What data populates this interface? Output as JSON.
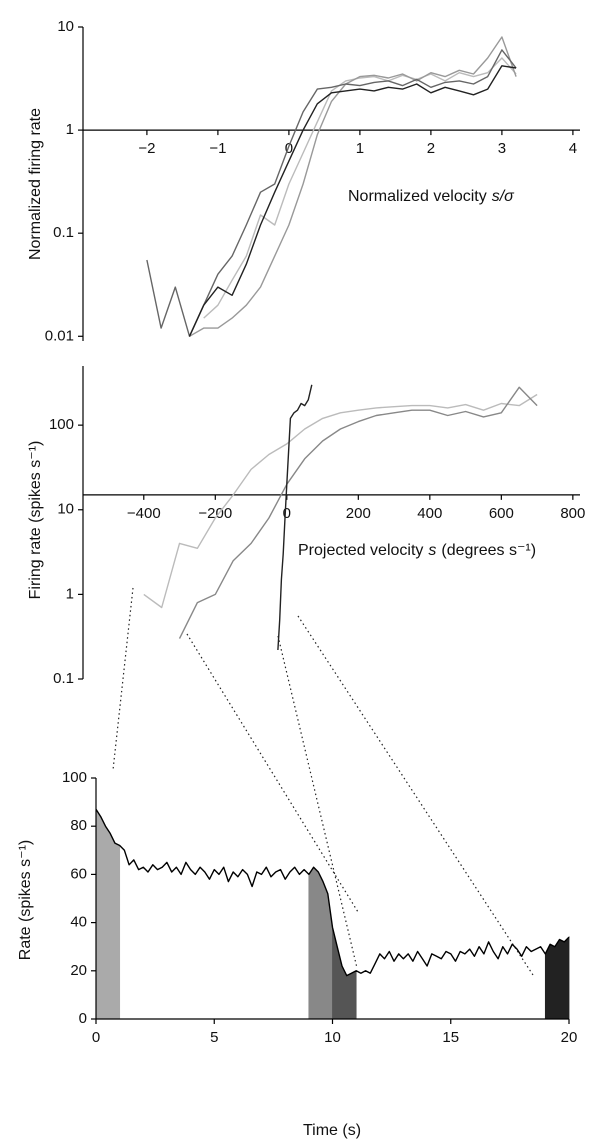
{
  "chart_data": [
    {
      "type": "line",
      "yscale": "log",
      "y_label": "Normalized firing rate",
      "x_label": [
        "Normalized velocity",
        "s/σ"
      ],
      "xlim": [
        -2.9,
        4.1
      ],
      "ylim": [
        0.009,
        10
      ],
      "x_axis_at": 1,
      "xticks": [
        {
          "value": -2,
          "label": "−2"
        },
        {
          "value": -1,
          "label": "−1"
        },
        0,
        1,
        2,
        3,
        4
      ],
      "yticks": [
        0.01,
        0.1,
        1,
        10
      ],
      "x": [
        -2.0,
        -1.8,
        -1.6,
        -1.4,
        -1.2,
        -1.0,
        -0.8,
        -0.6,
        -0.4,
        -0.2,
        0,
        0.2,
        0.4,
        0.6,
        0.8,
        1.0,
        1.2,
        1.4,
        1.6,
        1.8,
        2.0,
        2.2,
        2.4,
        2.6,
        2.8,
        3.0,
        3.2
      ],
      "series": [
        {
          "color": "#bbbbbb",
          "values": [
            null,
            null,
            null,
            null,
            0.015,
            0.02,
            0.035,
            0.06,
            0.15,
            0.12,
            0.3,
            0.6,
            1.2,
            2.4,
            3.0,
            3.2,
            3.3,
            3.0,
            3.4,
            3.1,
            3.5,
            3.0,
            3.6,
            3.3,
            3.6,
            5.0,
            3.5
          ]
        },
        {
          "color": "#999999",
          "values": [
            null,
            null,
            null,
            0.01,
            0.012,
            0.012,
            0.015,
            0.02,
            0.03,
            0.06,
            0.12,
            0.3,
            0.9,
            1.9,
            2.8,
            3.3,
            3.4,
            3.2,
            3.5,
            3.0,
            3.6,
            3.3,
            3.8,
            3.5,
            5.0,
            8.0,
            3.3
          ]
        },
        {
          "color": "#666666",
          "values": [
            0.055,
            0.012,
            0.03,
            0.01,
            0.02,
            0.04,
            0.06,
            0.12,
            0.25,
            0.3,
            0.7,
            1.5,
            2.5,
            2.6,
            2.8,
            2.7,
            2.9,
            3.0,
            2.7,
            3.1,
            2.6,
            2.9,
            3.0,
            2.8,
            3.3,
            6.0,
            4.0
          ]
        },
        {
          "color": "#222222",
          "values": [
            null,
            null,
            null,
            0.01,
            0.02,
            0.03,
            0.025,
            0.05,
            0.12,
            0.25,
            0.5,
            1.0,
            1.8,
            2.3,
            2.4,
            2.5,
            2.4,
            2.6,
            2.5,
            2.8,
            2.3,
            2.6,
            2.4,
            2.2,
            2.5,
            4.2,
            4.0
          ]
        }
      ]
    },
    {
      "type": "line",
      "yscale": "log",
      "y_label": "Firing rate (spikes s⁻¹)",
      "x_label": [
        "Projected velocity",
        "s",
        "(degrees s⁻¹)"
      ],
      "xlim": [
        -570,
        820
      ],
      "ylim": [
        0.1,
        500
      ],
      "x_axis_at": 15,
      "xticks": [
        {
          "value": -400,
          "label": "−400"
        },
        {
          "value": -200,
          "label": "−200"
        },
        0,
        200,
        400,
        600,
        800
      ],
      "yticks": [
        0.1,
        1,
        10,
        100
      ],
      "series": [
        {
          "color": "#bbbbbb",
          "x": [
            -400,
            -350,
            -300,
            -250,
            -200,
            -150,
            -100,
            -50,
            0,
            50,
            100,
            150,
            200,
            250,
            300,
            350,
            400,
            450,
            500,
            550,
            600,
            650,
            700
          ],
          "values": [
            1.0,
            0.7,
            4,
            3.5,
            8,
            15,
            30,
            45,
            60,
            90,
            120,
            140,
            150,
            160,
            165,
            170,
            170,
            160,
            175,
            150,
            180,
            170,
            230
          ]
        },
        {
          "color": "#888888",
          "x": [
            -300,
            -250,
            -200,
            -150,
            -100,
            -50,
            0,
            50,
            100,
            150,
            200,
            250,
            300,
            350,
            400,
            450,
            500,
            550,
            600,
            650,
            700
          ],
          "values": [
            0.3,
            0.8,
            1.0,
            2.5,
            4,
            8,
            20,
            40,
            65,
            90,
            110,
            130,
            140,
            150,
            150,
            130,
            145,
            125,
            140,
            280,
            170
          ]
        },
        {
          "color": "#222222",
          "x": [
            -25,
            -20,
            -15,
            -10,
            -5,
            0,
            10,
            20,
            30,
            40,
            50,
            60,
            70
          ],
          "values": [
            0.22,
            0.5,
            1.5,
            3,
            8,
            20,
            120,
            140,
            150,
            180,
            170,
            200,
            300
          ]
        }
      ]
    },
    {
      "type": "line",
      "yscale": "linear",
      "y_label": "Rate (spikes s⁻¹)",
      "x_label": "Time (s)",
      "xlim": [
        0,
        20
      ],
      "ylim": [
        0,
        100
      ],
      "x_axis_at": 0,
      "xticks": [
        0,
        5,
        10,
        15,
        20
      ],
      "yticks": [
        0,
        20,
        40,
        60,
        80,
        100
      ],
      "highlights": [
        {
          "start": 0,
          "end": 1,
          "color": "#aaaaaa"
        },
        {
          "start": 9,
          "end": 10,
          "color": "#888888"
        },
        {
          "start": 10,
          "end": 11,
          "color": "#555555"
        },
        {
          "start": 19,
          "end": 20,
          "color": "#222222"
        }
      ],
      "x": [
        0,
        0.2,
        0.4,
        0.6,
        0.8,
        1.0,
        1.2,
        1.4,
        1.6,
        1.8,
        2.0,
        2.2,
        2.4,
        2.6,
        2.8,
        3.0,
        3.2,
        3.4,
        3.6,
        3.8,
        4.0,
        4.2,
        4.4,
        4.6,
        4.8,
        5.0,
        5.2,
        5.4,
        5.6,
        5.8,
        6.0,
        6.2,
        6.4,
        6.6,
        6.8,
        7.0,
        7.2,
        7.4,
        7.6,
        7.8,
        8.0,
        8.2,
        8.4,
        8.6,
        8.8,
        9.0,
        9.2,
        9.4,
        9.6,
        9.8,
        10.0,
        10.2,
        10.4,
        10.6,
        10.8,
        11.0,
        11.2,
        11.4,
        11.6,
        11.8,
        12.0,
        12.2,
        12.4,
        12.6,
        12.8,
        13.0,
        13.2,
        13.4,
        13.6,
        13.8,
        14.0,
        14.2,
        14.4,
        14.6,
        14.8,
        15.0,
        15.2,
        15.4,
        15.6,
        15.8,
        16.0,
        16.2,
        16.4,
        16.6,
        16.8,
        17.0,
        17.2,
        17.4,
        17.6,
        17.8,
        18.0,
        18.2,
        18.4,
        18.6,
        18.8,
        19.0,
        19.2,
        19.4,
        19.6,
        19.8,
        20.0
      ],
      "series": [
        {
          "color": "#000000",
          "values": [
            87,
            84,
            80,
            77,
            73,
            72,
            70,
            64,
            66,
            62,
            63,
            61,
            64,
            62,
            63,
            65,
            61,
            63,
            60,
            65,
            62,
            60,
            63,
            61,
            58,
            62,
            60,
            63,
            57,
            61,
            59,
            62,
            60,
            55,
            61,
            60,
            63,
            59,
            61,
            62,
            58,
            61,
            63,
            60,
            62,
            60,
            63,
            61,
            57,
            52,
            38,
            30,
            22,
            18,
            19,
            20,
            19,
            20,
            19,
            23,
            27,
            25,
            28,
            24,
            27,
            25,
            27,
            24,
            28,
            25,
            22,
            27,
            26,
            25,
            28,
            27,
            24,
            28,
            27,
            29,
            26,
            30,
            27,
            32,
            28,
            25,
            30,
            27,
            31,
            29,
            26,
            30,
            28,
            29,
            30,
            27,
            31,
            30,
            33,
            32,
            34
          ]
        }
      ]
    }
  ]
}
